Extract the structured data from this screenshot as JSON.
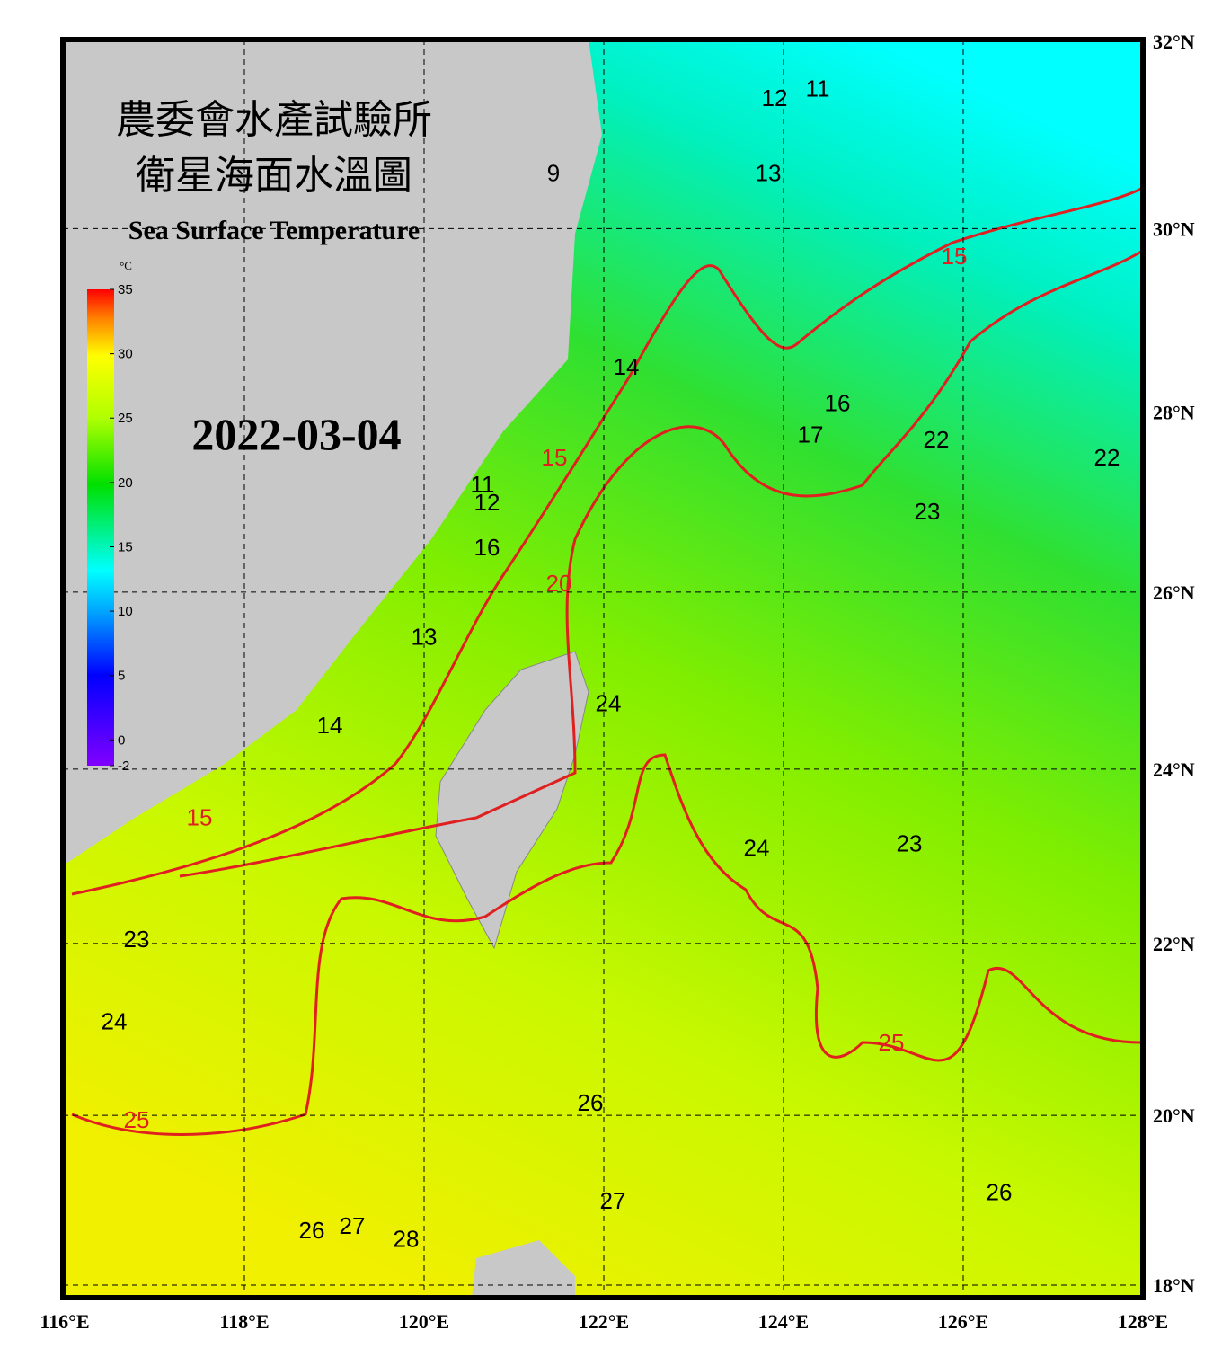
{
  "chart_data": {
    "type": "map",
    "title_zh_1": "農委會水產試驗所",
    "title_zh_2": "衛星海面水溫圖",
    "title": "Sea Surface Temperature",
    "date": "2022-03-04",
    "xlim": [
      116,
      128
    ],
    "ylim": [
      18,
      32
    ],
    "xticks": [
      {
        "value": 116,
        "label": "116°E"
      },
      {
        "value": 118,
        "label": "118°E"
      },
      {
        "value": 120,
        "label": "120°E"
      },
      {
        "value": 122,
        "label": "122°E"
      },
      {
        "value": 124,
        "label": "124°E"
      },
      {
        "value": 126,
        "label": "126°E"
      },
      {
        "value": 128,
        "label": "128°E"
      }
    ],
    "yticks": [
      {
        "value": 18,
        "label": "18°N"
      },
      {
        "value": 20,
        "label": "20°N"
      },
      {
        "value": 22,
        "label": "22°N"
      },
      {
        "value": 24,
        "label": "24°N"
      },
      {
        "value": 26,
        "label": "26°N"
      },
      {
        "value": 28,
        "label": "28°N"
      },
      {
        "value": 30,
        "label": "30°N"
      },
      {
        "value": 32,
        "label": "32°N"
      }
    ],
    "grid": true,
    "colorbar": {
      "unit": "°C",
      "lim": [
        -2,
        35
      ],
      "ticks": [
        35,
        30,
        25,
        20,
        15,
        10,
        5,
        0,
        -2
      ]
    },
    "contour_labels": [
      {
        "value": 11,
        "lon": 124.38,
        "lat": 31.5,
        "color": "black"
      },
      {
        "value": 12,
        "lon": 123.9,
        "lat": 31.4,
        "color": "black"
      },
      {
        "value": 13,
        "lon": 123.83,
        "lat": 30.6,
        "color": "black"
      },
      {
        "value": 9,
        "lon": 121.44,
        "lat": 30.6,
        "color": "black"
      },
      {
        "value": 15,
        "lon": 125.9,
        "lat": 29.7,
        "color": "red"
      },
      {
        "value": 14,
        "lon": 122.25,
        "lat": 28.5,
        "color": "black"
      },
      {
        "value": 16,
        "lon": 124.6,
        "lat": 28.1,
        "color": "black"
      },
      {
        "value": 17,
        "lon": 124.3,
        "lat": 27.75,
        "color": "black"
      },
      {
        "value": 22,
        "lon": 125.7,
        "lat": 27.7,
        "color": "black"
      },
      {
        "value": 22,
        "lon": 127.6,
        "lat": 27.5,
        "color": "black"
      },
      {
        "value": 23,
        "lon": 125.6,
        "lat": 26.9,
        "color": "black"
      },
      {
        "value": 15,
        "lon": 121.45,
        "lat": 27.5,
        "color": "red"
      },
      {
        "value": 11,
        "lon": 120.65,
        "lat": 27.2,
        "color": "black"
      },
      {
        "value": 12,
        "lon": 120.7,
        "lat": 27.0,
        "color": "black"
      },
      {
        "value": 16,
        "lon": 120.7,
        "lat": 26.5,
        "color": "black"
      },
      {
        "value": 20,
        "lon": 121.5,
        "lat": 26.1,
        "color": "red"
      },
      {
        "value": 13,
        "lon": 120.0,
        "lat": 25.5,
        "color": "black"
      },
      {
        "value": 24,
        "lon": 122.05,
        "lat": 24.75,
        "color": "black"
      },
      {
        "value": 14,
        "lon": 118.95,
        "lat": 24.5,
        "color": "black"
      },
      {
        "value": 15,
        "lon": 117.5,
        "lat": 23.45,
        "color": "red"
      },
      {
        "value": 24,
        "lon": 123.7,
        "lat": 23.1,
        "color": "black"
      },
      {
        "value": 23,
        "lon": 125.4,
        "lat": 23.15,
        "color": "black"
      },
      {
        "value": 23,
        "lon": 116.8,
        "lat": 22.05,
        "color": "black"
      },
      {
        "value": 24,
        "lon": 116.55,
        "lat": 21.1,
        "color": "black"
      },
      {
        "value": 25,
        "lon": 125.2,
        "lat": 20.85,
        "color": "red"
      },
      {
        "value": 26,
        "lon": 121.85,
        "lat": 20.15,
        "color": "black"
      },
      {
        "value": 25,
        "lon": 116.8,
        "lat": 19.95,
        "color": "red"
      },
      {
        "value": 26,
        "lon": 126.4,
        "lat": 19.1,
        "color": "black"
      },
      {
        "value": 27,
        "lon": 122.1,
        "lat": 19.0,
        "color": "black"
      },
      {
        "value": 26,
        "lon": 118.75,
        "lat": 18.65,
        "color": "black"
      },
      {
        "value": 27,
        "lon": 119.2,
        "lat": 18.7,
        "color": "black"
      },
      {
        "value": 28,
        "lon": 119.8,
        "lat": 18.55,
        "color": "black"
      }
    ]
  }
}
